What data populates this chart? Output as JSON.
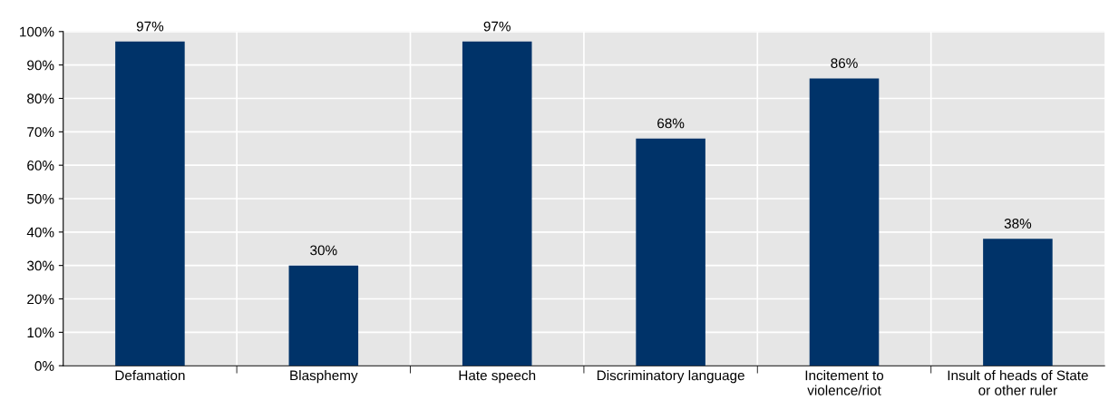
{
  "chart_data": {
    "type": "bar",
    "categories": [
      "Defamation",
      "Blasphemy",
      "Hate speech",
      "Discriminatory language",
      "Incitement to\nviolence/riot",
      "Insult of heads of State\nor other ruler"
    ],
    "values": [
      97,
      30,
      97,
      68,
      86,
      38
    ],
    "value_labels": [
      "97%",
      "30%",
      "97%",
      "68%",
      "86%",
      "38%"
    ],
    "color": "#003369",
    "ylim": [
      0,
      100
    ],
    "yticks": [
      {
        "value": 0,
        "label": "0%"
      },
      {
        "value": 10,
        "label": "10%"
      },
      {
        "value": 20,
        "label": "20%"
      },
      {
        "value": 30,
        "label": "30%"
      },
      {
        "value": 40,
        "label": "40%"
      },
      {
        "value": 50,
        "label": "50%"
      },
      {
        "value": 60,
        "label": "60%"
      },
      {
        "value": 70,
        "label": "70%"
      },
      {
        "value": 80,
        "label": "80%"
      },
      {
        "value": 90,
        "label": "90%"
      },
      {
        "value": 100,
        "label": "100%"
      }
    ],
    "grid": true
  }
}
